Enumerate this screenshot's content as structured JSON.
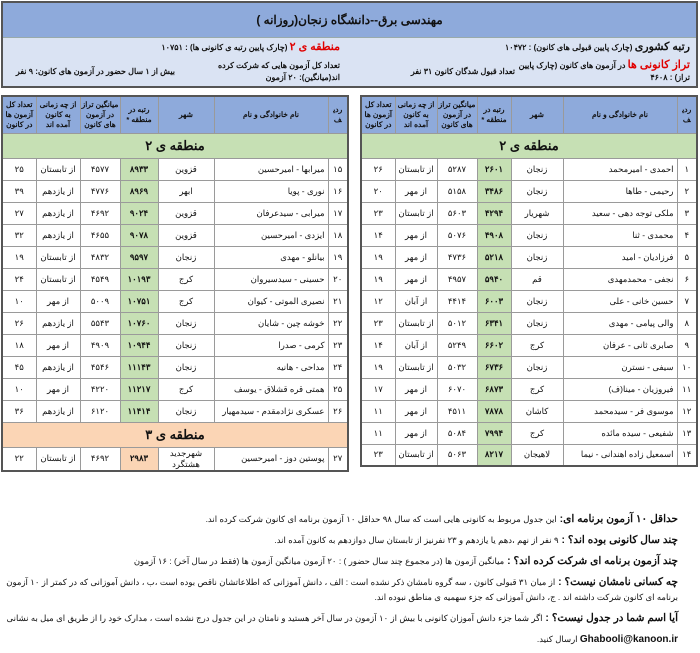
{
  "header": {
    "title": "مهندسی برق--دانشگاه زنجان(روزانه )",
    "national_rank_label": "رتبه کشوری",
    "national_rank_text": " (چارک پایین قبولی های کانون) : ۱۰۴۷۲",
    "region_label": "منطقه ی ۲",
    "region_text": " (چارک پایین رتبه ی کانونی ها) : ۱۰۷۵۱",
    "taraz_label": "تراز کانونی ها",
    "taraz_text": " در آزمون های کانون (چارک پایین تراز) : ۴۶۰۸",
    "accepted_count": "تعداد قبول شدگان کانون ۳۱ نفر",
    "avg_exams": "تعداد کل آزمون هایی که شرکت کرده اند(میانگین): ۲۰ آزمون",
    "over_one_year": "بیش از ۱ سال حضور در آزمون های کانون: ۹ نفر"
  },
  "columns": [
    "ردیف",
    "نام خانوادگی و نام",
    "شهر",
    "رتبه در منطقه *",
    "میانگین تراز در آزمون های کانون",
    "از چه زمانی به کانون آمده اند",
    "تعداد کل آزمون ها در کانون"
  ],
  "zones": {
    "z2": "منطقه ی ۲",
    "z3": "منطقه ی ۳"
  },
  "right_rows": [
    [
      "۱",
      "احمدی - امیرمحمد",
      "زنجان",
      "۲۶۰۱",
      "۵۲۸۷",
      "از تابستان",
      "۲۶"
    ],
    [
      "۲",
      "رحیمی - طاها",
      "زنجان",
      "۳۴۸۶",
      "۵۱۵۸",
      "از مهر",
      "۲۰"
    ],
    [
      "۳",
      "ملکی توجه دهی - سعید",
      "شهریار",
      "۴۲۹۴",
      "۵۶۰۳",
      "از تابستان",
      "۲۳"
    ],
    [
      "۴",
      "محمدی - ثنا",
      "زنجان",
      "۴۹۰۸",
      "۵۰۷۶",
      "از مهر",
      "۱۴"
    ],
    [
      "۵",
      "فرزادیان - امید",
      "زنجان",
      "۵۲۱۸",
      "۴۷۳۶",
      "از مهر",
      "۱۹"
    ],
    [
      "۶",
      "نجفی - محمدمهدی",
      "قم",
      "۵۹۴۰",
      "۴۹۵۷",
      "از مهر",
      "۱۹"
    ],
    [
      "۷",
      "حسین خانی - علی",
      "زنجان",
      "۶۰۰۳",
      "۴۴۱۴",
      "از آبان",
      "۱۲"
    ],
    [
      "۸",
      "والی پیامی - مهدی",
      "زنجان",
      "۶۳۴۱",
      "۵۰۱۲",
      "از تابستان",
      "۲۳"
    ],
    [
      "۹",
      "صابری ثانی - عرفان",
      "کرج",
      "۶۶۰۲",
      "۵۲۴۹",
      "از آبان",
      "۱۴"
    ],
    [
      "۱۰",
      "سیفی - نسترن",
      "زنجان",
      "۶۷۳۶",
      "۵۰۳۲",
      "از تابستان",
      "۱۹"
    ],
    [
      "۱۱",
      "فیروزیان - مینا(ف)",
      "کرج",
      "۶۸۷۳",
      "۶۰۷۰",
      "از مهر",
      "۱۷"
    ],
    [
      "۱۲",
      "موسوی فر - سیدمحمد",
      "کاشان",
      "۷۸۷۸",
      "۴۵۱۱",
      "از مهر",
      "۱۱"
    ],
    [
      "۱۳",
      "شفیعی - سیده مائده",
      "کرج",
      "۷۹۹۴",
      "۵۰۸۴",
      "از مهر",
      "۱۱"
    ],
    [
      "۱۴",
      "اسمعیل زاده اهندانی - نیما",
      "لاهیجان",
      "۸۲۱۷",
      "۵۰۶۳",
      "از تابستان",
      "۲۳"
    ]
  ],
  "left_rows": [
    [
      "۱۵",
      "میرابها - امیرحسین",
      "قزوین",
      "۸۹۳۳",
      "۴۵۷۷",
      "از تابستان",
      "۲۵"
    ],
    [
      "۱۶",
      "نوری - پویا",
      "ابهر",
      "۸۹۶۹",
      "۴۷۷۶",
      "از یازدهم",
      "۳۹"
    ],
    [
      "۱۷",
      "میرابی - سیدعرفان",
      "قزوین",
      "۹۰۲۴",
      "۴۶۹۲",
      "از یازدهم",
      "۲۷"
    ],
    [
      "۱۸",
      "ایزدی - امیرحسین",
      "قزوین",
      "۹۰۷۸",
      "۴۶۵۵",
      "از یازدهم",
      "۳۲"
    ],
    [
      "۱۹",
      "بیانلو - مهدی",
      "زنجان",
      "۹۵۹۷",
      "۴۸۳۲",
      "از تابستان",
      "۱۹"
    ],
    [
      "۲۰",
      "حسینی - سیدسیروان",
      "کرج",
      "۱۰۱۹۳",
      "۴۵۴۹",
      "از تابستان",
      "۲۴"
    ],
    [
      "۲۱",
      "نصیری الموتی - کیوان",
      "کرج",
      "۱۰۷۵۱",
      "۵۰۰۹",
      "از مهر",
      "۱۰"
    ],
    [
      "۲۲",
      "خوشه چین - شایان",
      "زنجان",
      "۱۰۷۶۰",
      "۵۵۴۳",
      "از یازدهم",
      "۲۶"
    ],
    [
      "۲۳",
      "کرمی - صدرا",
      "زنجان",
      "۱۰۹۴۴",
      "۴۹۰۹",
      "از مهر",
      "۱۸"
    ],
    [
      "۲۴",
      "مداحی - هانیه",
      "زنجان",
      "۱۱۱۴۳",
      "۴۵۴۶",
      "از یازدهم",
      "۴۵"
    ],
    [
      "۲۵",
      "همتی قره قشلاق - یوسف",
      "کرج",
      "۱۱۲۱۷",
      "۴۲۲۰",
      "از مهر",
      "۱۰"
    ],
    [
      "۲۶",
      "عسکری نژادمقدم - سیدمهیار",
      "زنجان",
      "۱۱۴۱۴",
      "۶۱۲۰",
      "از یازدهم",
      "۳۶"
    ]
  ],
  "zone3_rows": [
    [
      "۲۷",
      "پوستین دوز - امیرحسین",
      "شهرجدید هشتگرد",
      "۲۹۸۳",
      "۴۶۹۲",
      "از تابستان",
      "۲۲"
    ]
  ],
  "footer": [
    {
      "label": "حداقل ۱۰ آزمون برنامه ای: ",
      "text": "این جدول مربوط به کانونی هایی است که سال ۹۸ حداقل ۱۰ آزمون برنامه ای کانون شرکت کرده اند."
    },
    {
      "label": "چند سال کانونی بوده اند؟ : ",
      "text": "۹ نفر از نهم ،دهم یا یازدهم و ۲۳ نفرنیز از تابستان سال دوازدهم به کانون آمده اند."
    },
    {
      "label": "چند آزمون برنامه ای شرکت کرده اند؟ : ",
      "text": "میانگین آزمون ها (در مجموع چند سال حضور ) : ۲۰ آزمون     میانگین آزمون ها (فقط در سال آخر) : ۱۶ آزمون"
    },
    {
      "label": "چه کسانی نامشان نیست؟ : ",
      "text": "از میان ۳۱ قبولی کانون ، سه گروه نامشان ذکر نشده است : الف ، دانش آموزانی که اطلاعاتشان ناقص بوده است ،ب ، دانش آموزانی که در کمتر از ۱۰ آزمون برنامه ای کانون شرکت داشته اند . ج، دانش آموزانی که جزء سهمیه ی مناطق نبوده اند."
    },
    {
      "label": "آیا اسم شما در جدول نیست؟ : ",
      "text": "اگر شما جزء دانش آموزان کانونی با بیش از ۱۰ آزمون در سال آخر هستید و نامتان در این جدول درج نشده است ، مدارک خود را از طریق ای میل به نشانی"
    }
  ],
  "email": "Ghabooli@kanoon.ir",
  "email_suffix": " ارسال کنید."
}
